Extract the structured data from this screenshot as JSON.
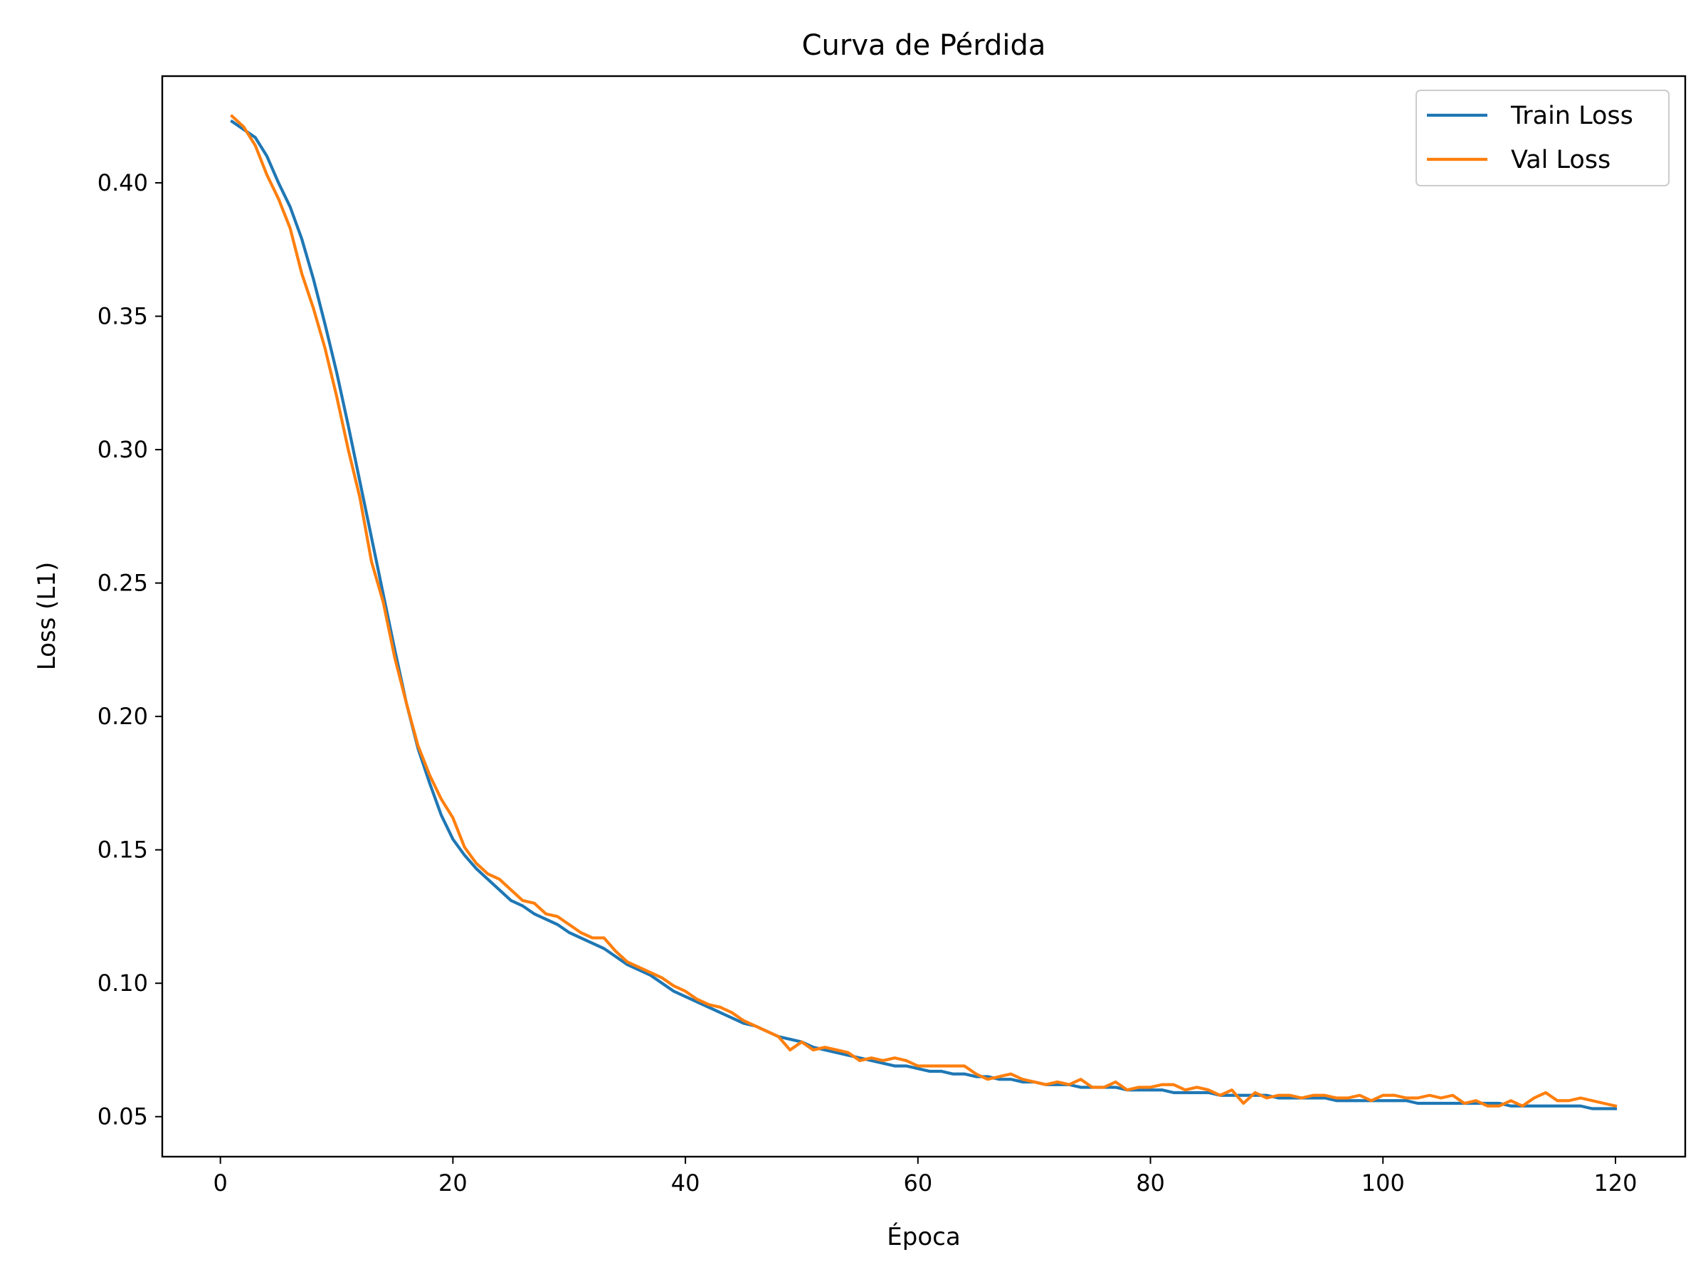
{
  "chart_data": {
    "type": "line",
    "title": "Curva de Pérdida",
    "xlabel": "Época",
    "ylabel": "Loss (L1)",
    "xlim": [
      -5,
      126
    ],
    "ylim": [
      0.035,
      0.44
    ],
    "xticks": [
      0,
      20,
      40,
      60,
      80,
      100,
      120
    ],
    "xtick_labels": [
      "0",
      "20",
      "40",
      "60",
      "80",
      "100",
      "120"
    ],
    "yticks": [
      0.05,
      0.1,
      0.15,
      0.2,
      0.25,
      0.3,
      0.35,
      0.4
    ],
    "ytick_labels": [
      "0.05",
      "0.10",
      "0.15",
      "0.20",
      "0.25",
      "0.30",
      "0.35",
      "0.40"
    ],
    "grid": false,
    "legend_position": "top-right",
    "x": [
      1,
      2,
      3,
      4,
      5,
      6,
      7,
      8,
      9,
      10,
      11,
      12,
      13,
      14,
      15,
      16,
      17,
      18,
      19,
      20,
      21,
      22,
      23,
      24,
      25,
      26,
      27,
      28,
      29,
      30,
      31,
      32,
      33,
      34,
      35,
      36,
      37,
      38,
      39,
      40,
      41,
      42,
      43,
      44,
      45,
      46,
      47,
      48,
      49,
      50,
      51,
      52,
      53,
      54,
      55,
      56,
      57,
      58,
      59,
      60,
      61,
      62,
      63,
      64,
      65,
      66,
      67,
      68,
      69,
      70,
      71,
      72,
      73,
      74,
      75,
      76,
      77,
      78,
      79,
      80,
      81,
      82,
      83,
      84,
      85,
      86,
      87,
      88,
      89,
      90,
      91,
      92,
      93,
      94,
      95,
      96,
      97,
      98,
      99,
      100,
      101,
      102,
      103,
      104,
      105,
      106,
      107,
      108,
      109,
      110,
      111,
      112,
      113,
      114,
      115,
      116,
      117,
      118,
      119,
      120
    ],
    "series": [
      {
        "name": "Train Loss",
        "color": "#1f77b4",
        "values": [
          0.423,
          0.42,
          0.417,
          0.41,
          0.4,
          0.391,
          0.379,
          0.364,
          0.347,
          0.329,
          0.309,
          0.288,
          0.267,
          0.246,
          0.225,
          0.205,
          0.188,
          0.175,
          0.163,
          0.154,
          0.148,
          0.143,
          0.139,
          0.135,
          0.131,
          0.129,
          0.126,
          0.124,
          0.122,
          0.119,
          0.117,
          0.115,
          0.113,
          0.11,
          0.107,
          0.105,
          0.103,
          0.1,
          0.097,
          0.095,
          0.093,
          0.091,
          0.089,
          0.087,
          0.085,
          0.084,
          0.082,
          0.08,
          0.079,
          0.078,
          0.076,
          0.075,
          0.074,
          0.073,
          0.072,
          0.071,
          0.07,
          0.069,
          0.069,
          0.068,
          0.067,
          0.067,
          0.066,
          0.066,
          0.065,
          0.065,
          0.064,
          0.064,
          0.063,
          0.063,
          0.062,
          0.062,
          0.062,
          0.061,
          0.061,
          0.061,
          0.061,
          0.06,
          0.06,
          0.06,
          0.06,
          0.059,
          0.059,
          0.059,
          0.059,
          0.058,
          0.058,
          0.058,
          0.058,
          0.058,
          0.057,
          0.057,
          0.057,
          0.057,
          0.057,
          0.056,
          0.056,
          0.056,
          0.056,
          0.056,
          0.056,
          0.056,
          0.055,
          0.055,
          0.055,
          0.055,
          0.055,
          0.055,
          0.055,
          0.055,
          0.054,
          0.054,
          0.054,
          0.054,
          0.054,
          0.054,
          0.054,
          0.053,
          0.053,
          0.053
        ]
      },
      {
        "name": "Val Loss",
        "color": "#ff7f0e",
        "values": [
          0.425,
          0.421,
          0.414,
          0.403,
          0.394,
          0.383,
          0.366,
          0.353,
          0.338,
          0.32,
          0.3,
          0.282,
          0.258,
          0.243,
          0.222,
          0.205,
          0.189,
          0.178,
          0.169,
          0.162,
          0.151,
          0.145,
          0.141,
          0.139,
          0.135,
          0.131,
          0.13,
          0.126,
          0.125,
          0.122,
          0.119,
          0.117,
          0.117,
          0.112,
          0.108,
          0.106,
          0.104,
          0.102,
          0.099,
          0.097,
          0.094,
          0.092,
          0.091,
          0.089,
          0.086,
          0.084,
          0.082,
          0.08,
          0.075,
          0.078,
          0.075,
          0.076,
          0.075,
          0.074,
          0.071,
          0.072,
          0.071,
          0.072,
          0.071,
          0.069,
          0.069,
          0.069,
          0.069,
          0.069,
          0.066,
          0.064,
          0.065,
          0.066,
          0.064,
          0.063,
          0.062,
          0.063,
          0.062,
          0.064,
          0.061,
          0.061,
          0.063,
          0.06,
          0.061,
          0.061,
          0.062,
          0.062,
          0.06,
          0.061,
          0.06,
          0.058,
          0.06,
          0.055,
          0.059,
          0.057,
          0.058,
          0.058,
          0.057,
          0.058,
          0.058,
          0.057,
          0.057,
          0.058,
          0.056,
          0.058,
          0.058,
          0.057,
          0.057,
          0.058,
          0.057,
          0.058,
          0.055,
          0.056,
          0.054,
          0.054,
          0.056,
          0.054,
          0.057,
          0.059,
          0.056,
          0.056,
          0.057,
          0.056,
          0.055,
          0.054
        ]
      }
    ]
  }
}
